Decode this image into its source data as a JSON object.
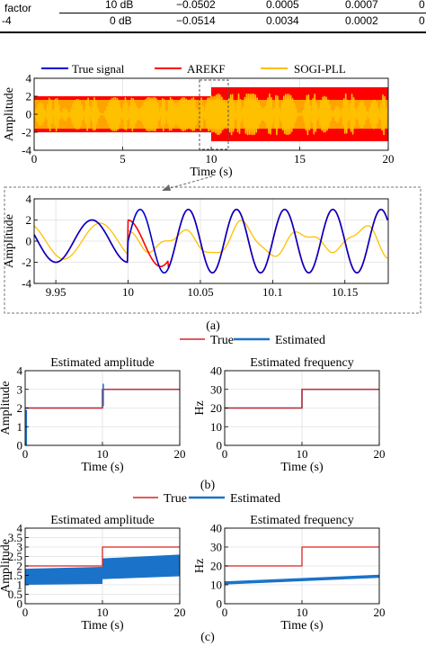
{
  "table_fragment": {
    "row_label": "factor",
    "rows": [
      {
        "snr": "10 dB",
        "c1": "−0.0502",
        "c2": "0.0005",
        "c3": "0.0007",
        "c4": "0"
      },
      {
        "snr": "0 dB",
        "c1": "−0.0514",
        "c2": "0.0034",
        "c3": "0.0002",
        "c4": "0"
      }
    ],
    "left_edge_text": "-4"
  },
  "chart_data": [
    {
      "id": "main",
      "type": "line",
      "xlabel": "Time (s)",
      "ylabel": "Amplitude",
      "xlim": [
        0,
        20
      ],
      "ylim": [
        -4,
        4
      ],
      "xticks": [
        0,
        5,
        10,
        15,
        20
      ],
      "yticks": [
        -4,
        -2,
        0,
        2,
        4
      ],
      "legend_position": "top",
      "series": [
        {
          "name": "True signal",
          "color": "#0000cc",
          "amplitude_before_10s": 2,
          "amplitude_after_10s": 3
        },
        {
          "name": "AREKF",
          "color": "#ff0000",
          "amplitude_before_10s": 2,
          "amplitude_after_10s": 3
        },
        {
          "name": "SOGI-PLL",
          "color": "#ffbf00",
          "amplitude_before_10s": 2,
          "amplitude_after_10s": 2.5
        }
      ]
    },
    {
      "id": "zoom",
      "type": "line",
      "xlabel": "",
      "ylabel": "Amplitude",
      "xlim": [
        9.935,
        10.18
      ],
      "ylim": [
        -4,
        4
      ],
      "xticks": [
        9.95,
        10,
        10.05,
        10.1,
        10.15
      ],
      "xtick_labels": [
        "9.95",
        "10",
        "10.05",
        "10.1",
        "10.15"
      ],
      "yticks": [
        -4,
        -2,
        0,
        2,
        4
      ],
      "series": [
        {
          "name": "True signal",
          "color": "#0000cc",
          "freq_before_10s": 20,
          "freq_after_10s": 30
        },
        {
          "name": "AREKF",
          "color": "#ff0000"
        },
        {
          "name": "SOGI-PLL",
          "color": "#ffbf00"
        }
      ]
    },
    {
      "id": "b-amp",
      "type": "line",
      "title": "Estimated amplitude",
      "xlabel": "Time (s)",
      "ylabel": "Amplitude",
      "xlim": [
        0,
        20
      ],
      "ylim": [
        0,
        4
      ],
      "xticks": [
        0,
        10,
        20
      ],
      "yticks": [
        0,
        1,
        2,
        3,
        4
      ],
      "series": [
        {
          "name": "True",
          "color": "#dd2222",
          "x": [
            0,
            10,
            10,
            20
          ],
          "y": [
            2,
            2,
            3,
            3
          ]
        },
        {
          "name": "Estimated",
          "color": "#1a73c8",
          "x": [
            0,
            10,
            10,
            20
          ],
          "y": [
            2,
            2,
            3,
            3
          ]
        }
      ]
    },
    {
      "id": "b-freq",
      "type": "line",
      "title": "Estimated frequency",
      "xlabel": "Time (s)",
      "ylabel": "Hz",
      "xlim": [
        0,
        20
      ],
      "ylim": [
        0,
        40
      ],
      "xticks": [
        0,
        10,
        20
      ],
      "yticks": [
        0,
        10,
        20,
        30,
        40
      ],
      "series": [
        {
          "name": "True",
          "color": "#dd2222",
          "x": [
            0,
            10,
            10,
            20
          ],
          "y": [
            20,
            20,
            30,
            30
          ]
        },
        {
          "name": "Estimated",
          "color": "#1a73c8",
          "x": [
            0,
            10,
            10,
            20
          ],
          "y": [
            20,
            20,
            30,
            30
          ]
        }
      ]
    },
    {
      "id": "c-amp",
      "type": "line",
      "title": "Estimated amplitude",
      "xlabel": "Time (s)",
      "ylabel": "Amplitude",
      "xlim": [
        0,
        20
      ],
      "ylim": [
        0,
        4
      ],
      "xticks": [
        0,
        10,
        20
      ],
      "yticks": [
        0,
        0.5,
        1,
        1.5,
        2,
        2.5,
        3,
        3.5,
        4
      ],
      "ytick_labels": [
        "0",
        "0.5",
        "1",
        "1.5",
        "2",
        "2.5",
        "3",
        "3.5",
        "4"
      ],
      "series": [
        {
          "name": "True",
          "color": "#dd2222",
          "x": [
            0,
            10,
            10,
            20
          ],
          "y": [
            2,
            2,
            3,
            3
          ]
        },
        {
          "name": "Estimated",
          "color": "#1a73c8",
          "band": {
            "x": [
              0,
              10,
              10,
              20
            ],
            "low": [
              1.0,
              1.05,
              1.3,
              1.45
            ],
            "high": [
              1.85,
              1.95,
              2.4,
              2.6
            ]
          }
        }
      ]
    },
    {
      "id": "c-freq",
      "type": "line",
      "title": "Estimated frequency",
      "xlabel": "Time (s)",
      "ylabel": "Hz",
      "xlim": [
        0,
        20
      ],
      "ylim": [
        0,
        40
      ],
      "xticks": [
        0,
        10,
        20
      ],
      "yticks": [
        0,
        10,
        20,
        30,
        40
      ],
      "series": [
        {
          "name": "True",
          "color": "#dd2222",
          "x": [
            0,
            10,
            10,
            20
          ],
          "y": [
            20,
            20,
            30,
            30
          ]
        },
        {
          "name": "Estimated",
          "color": "#1a73c8",
          "x": [
            0,
            20
          ],
          "y": [
            11,
            14.5
          ]
        }
      ]
    }
  ],
  "legends": {
    "main": [
      "True signal",
      "AREKF",
      "SOGI-PLL"
    ],
    "b": [
      "True",
      "Estimated"
    ],
    "c": [
      "True",
      "Estimated"
    ]
  },
  "captions": {
    "a": "(a)",
    "b": "(b)",
    "c": "(c)"
  }
}
